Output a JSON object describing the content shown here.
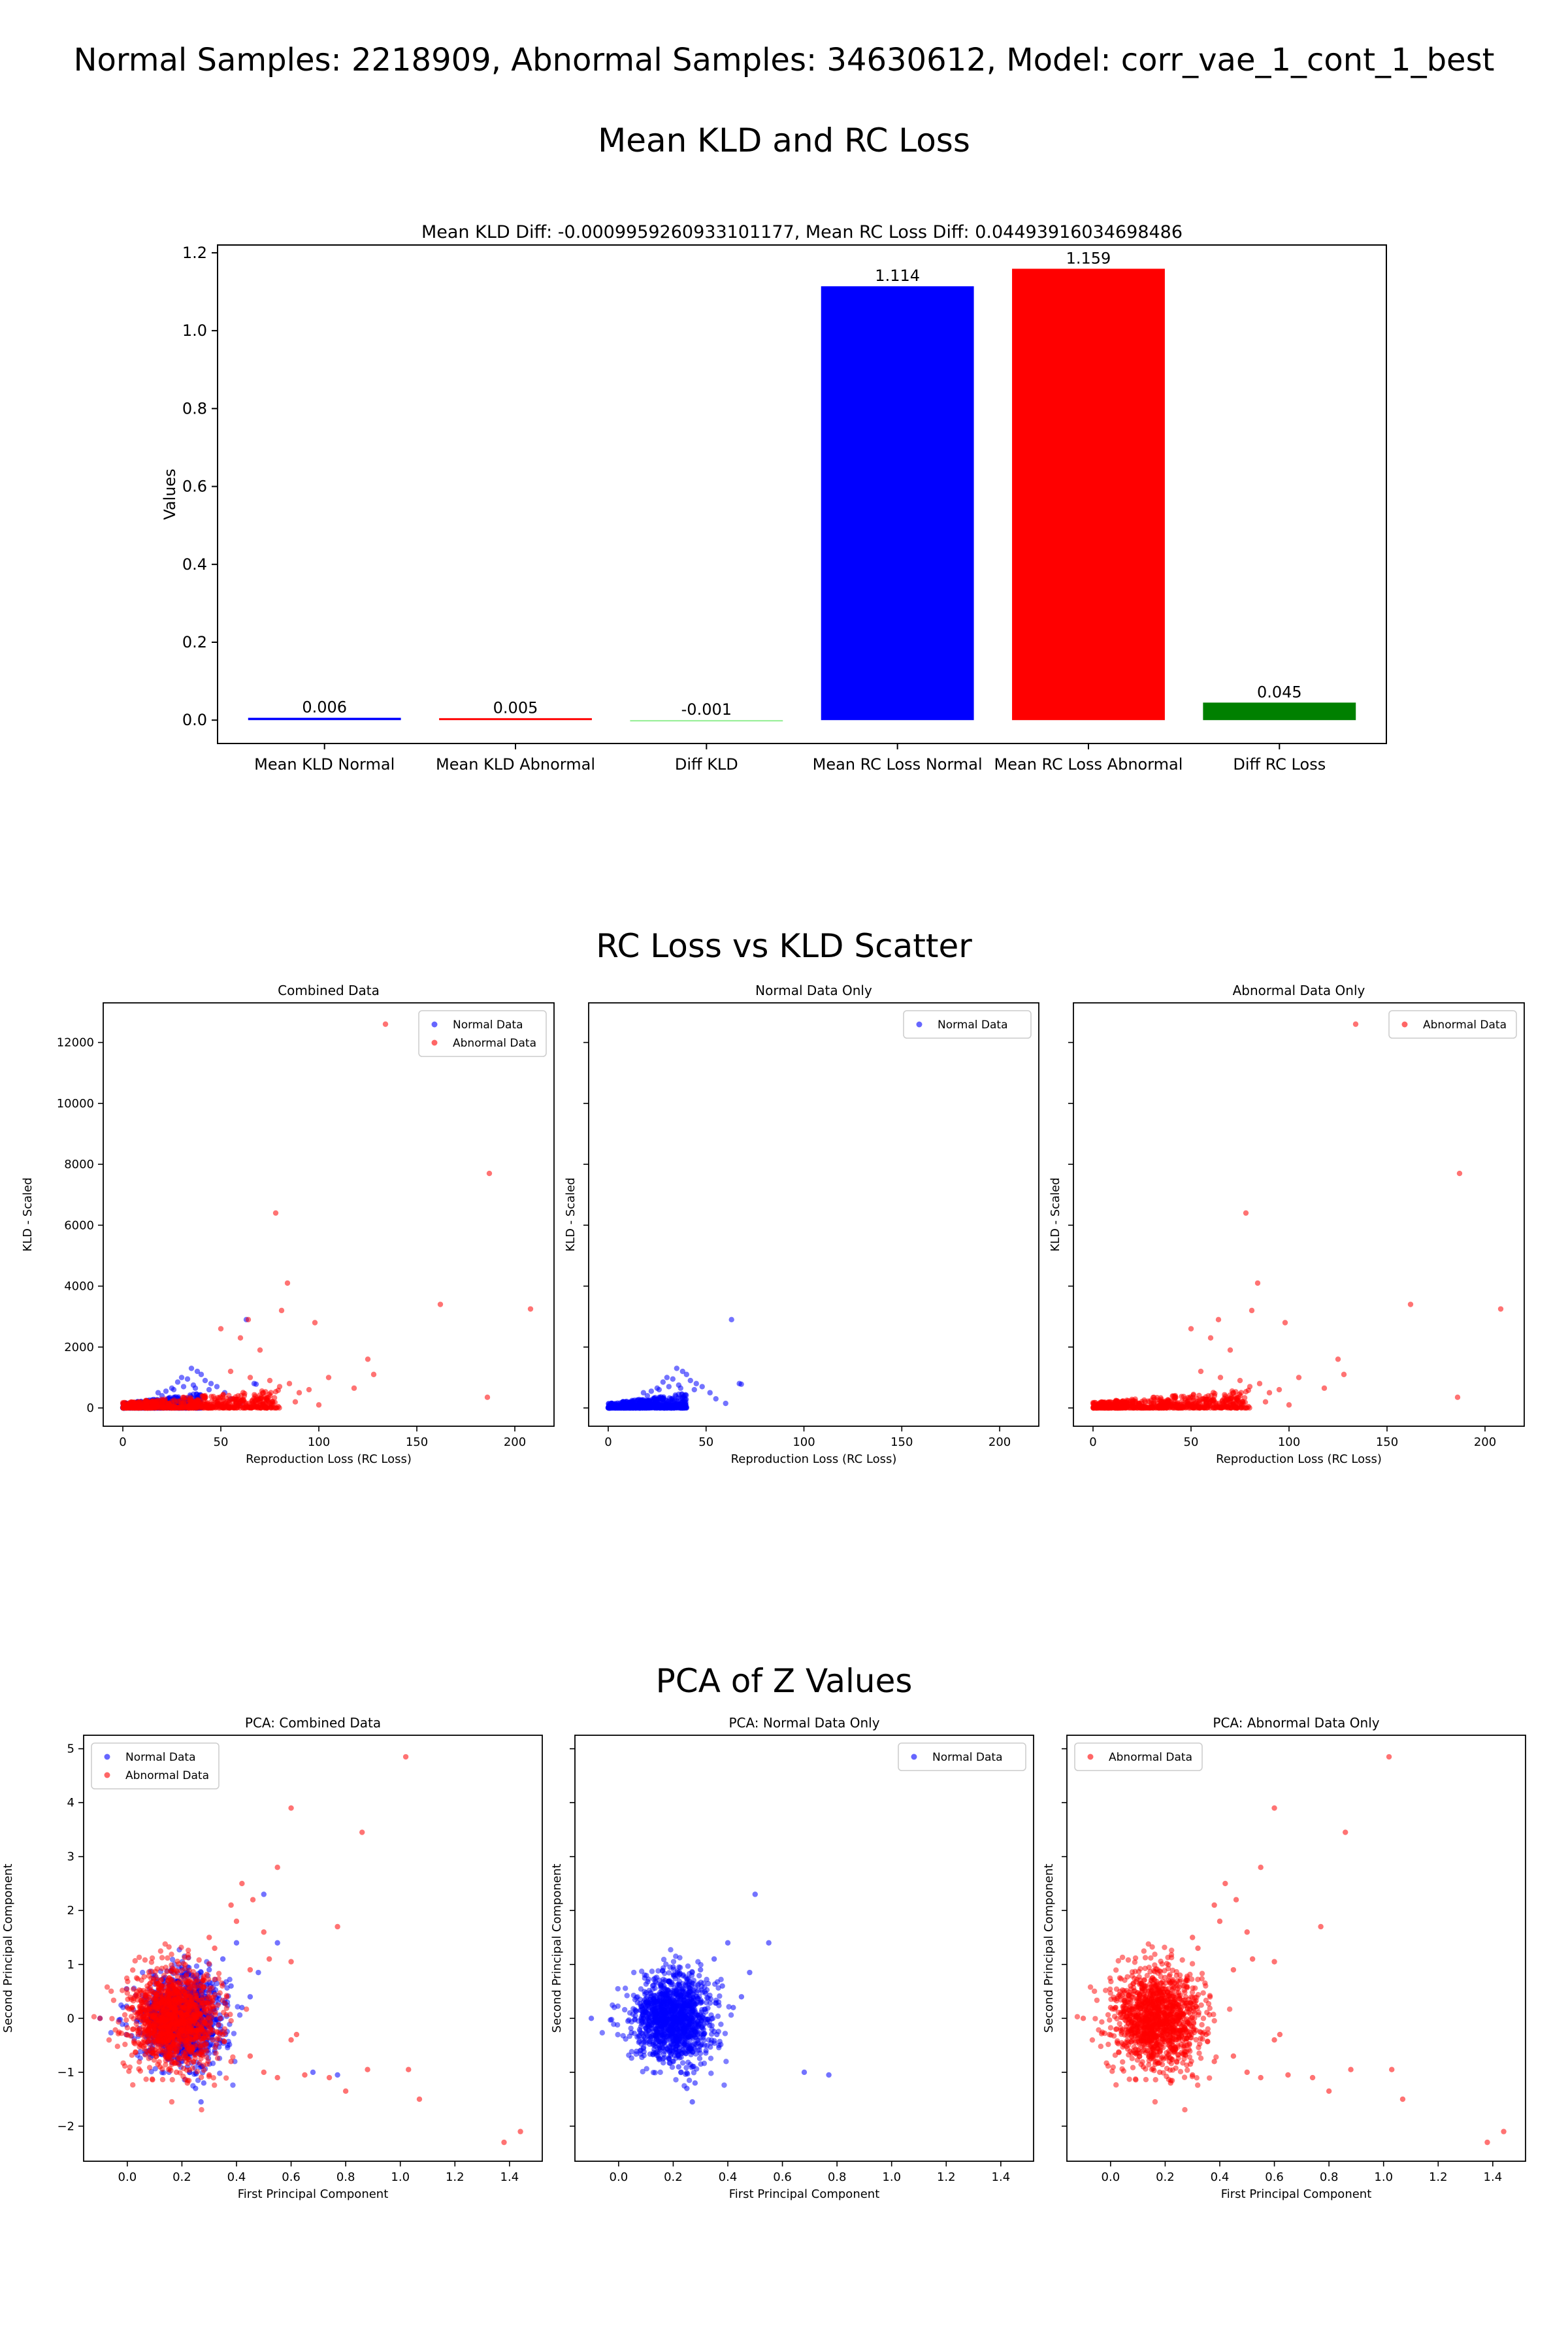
{
  "figure": {
    "suptitle": "Normal Samples: 2218909, Abnormal Samples: 34630612, Model: corr_vae_1_cont_1_best",
    "section_titles": [
      "Mean KLD and RC Loss",
      "RC Loss vs KLD Scatter",
      "PCA of Z Values"
    ]
  },
  "colors": {
    "normal": "#0000ff",
    "abnormal": "#ff0000",
    "diff_kld": "#90ee90",
    "diff_rc": "#008000"
  },
  "chart_data": [
    {
      "type": "bar",
      "title": "Mean KLD Diff: -0.0009959260933101177, Mean RC Loss Diff: 0.04493916034698486",
      "ylabel": "Values",
      "categories": [
        "Mean KLD Normal",
        "Mean KLD Abnormal",
        "Diff KLD",
        "Mean RC Loss Normal",
        "Mean RC Loss Abnormal",
        "Diff RC Loss"
      ],
      "values": [
        0.006,
        0.005,
        -0.001,
        1.114,
        1.159,
        0.045
      ],
      "value_labels": [
        "0.006",
        "0.005",
        "-0.001",
        "1.114",
        "1.159",
        "0.045"
      ],
      "bar_colors": [
        "#0000ff",
        "#ff0000",
        "#90ee90",
        "#0000ff",
        "#ff0000",
        "#008000"
      ],
      "ylim": [
        -0.06,
        1.22
      ],
      "yticks": [
        0.0,
        0.2,
        0.4,
        0.6,
        0.8,
        1.0,
        1.2
      ],
      "ytick_labels": [
        "0.0",
        "0.2",
        "0.4",
        "0.6",
        "0.8",
        "1.0",
        "1.2"
      ],
      "grid": false
    },
    {
      "type": "scatter",
      "group": "rc_vs_kld",
      "xlabel": "Reproduction Loss (RC Loss)",
      "ylabel": "KLD - Scaled",
      "xlim": [
        -10,
        220
      ],
      "ylim": [
        -600,
        13300
      ],
      "xticks": [
        0,
        50,
        100,
        150,
        200
      ],
      "xtick_labels": [
        "0",
        "50",
        "100",
        "150",
        "200"
      ],
      "yticks": [
        0,
        2000,
        4000,
        6000,
        8000,
        10000,
        12000
      ],
      "ytick_labels": [
        "0",
        "2000",
        "4000",
        "6000",
        "8000",
        "10000",
        "12000"
      ],
      "legend_placement": "upper right",
      "panels": [
        {
          "title": "Combined Data",
          "show_y_ticklabels": true,
          "series": [
            "normal",
            "abnormal"
          ]
        },
        {
          "title": "Normal Data Only",
          "show_y_ticklabels": false,
          "series": [
            "normal"
          ]
        },
        {
          "title": "Abnormal Data Only",
          "show_y_ticklabels": false,
          "series": [
            "abnormal"
          ]
        }
      ],
      "series": {
        "normal": {
          "name": "Normal Data",
          "points": [
            [
              30,
              1000
            ],
            [
              35,
              1300
            ],
            [
              38,
              1200
            ],
            [
              40,
              1100
            ],
            [
              42,
              900
            ],
            [
              45,
              800
            ],
            [
              48,
              700
            ],
            [
              33,
              950
            ],
            [
              28,
              850
            ],
            [
              25,
              650
            ],
            [
              36,
              750
            ],
            [
              44,
              600
            ],
            [
              52,
              500
            ],
            [
              55,
              300
            ],
            [
              60,
              150
            ],
            [
              63,
              2900
            ],
            [
              67,
              800
            ],
            [
              68,
              780
            ],
            [
              20,
              400
            ],
            [
              15,
              250
            ],
            [
              12,
              200
            ],
            [
              10,
              150
            ],
            [
              8,
              120
            ],
            [
              5,
              80
            ],
            [
              3,
              40
            ],
            [
              18,
              500
            ],
            [
              22,
              550
            ],
            [
              26,
              600
            ],
            [
              31,
              700
            ],
            [
              37,
              650
            ]
          ]
        },
        "abnormal": {
          "name": "Abnormal Data",
          "points": [
            [
              134,
              12600
            ],
            [
              187,
              7700
            ],
            [
              78,
              6400
            ],
            [
              84,
              4100
            ],
            [
              162,
              3400
            ],
            [
              208,
              3250
            ],
            [
              81,
              3200
            ],
            [
              98,
              2800
            ],
            [
              64,
              2900
            ],
            [
              50,
              2600
            ],
            [
              60,
              2300
            ],
            [
              125,
              1600
            ],
            [
              128,
              1100
            ],
            [
              118,
              650
            ],
            [
              186,
              350
            ],
            [
              100,
              100
            ],
            [
              70,
              1900
            ],
            [
              55,
              1200
            ],
            [
              65,
              1000
            ],
            [
              75,
              900
            ],
            [
              85,
              800
            ],
            [
              90,
              500
            ],
            [
              95,
              600
            ],
            [
              105,
              1000
            ],
            [
              80,
              700
            ],
            [
              62,
              400
            ],
            [
              70,
              300
            ],
            [
              88,
              200
            ],
            [
              42,
              400
            ],
            [
              47,
              300
            ],
            [
              35,
              200
            ],
            [
              30,
              150
            ],
            [
              20,
              100
            ],
            [
              15,
              80
            ],
            [
              10,
              50
            ]
          ]
        }
      },
      "dense": {
        "normal": {
          "x_range": [
            0,
            40
          ],
          "max_y": 350
        },
        "abnormal": {
          "x_range": [
            0,
            80
          ],
          "max_y": 450
        }
      }
    },
    {
      "type": "scatter",
      "group": "pca",
      "xlabel": "First Principal Component",
      "ylabel": "Second Principal Component",
      "xlim": [
        -0.16,
        1.52
      ],
      "ylim": [
        -2.65,
        5.25
      ],
      "xticks": [
        0.0,
        0.2,
        0.4,
        0.6,
        0.8,
        1.0,
        1.2,
        1.4
      ],
      "xtick_labels": [
        "0.0",
        "0.2",
        "0.4",
        "0.6",
        "0.8",
        "1.0",
        "1.2",
        "1.4"
      ],
      "yticks": [
        -2,
        -1,
        0,
        1,
        2,
        3,
        4,
        5
      ],
      "ytick_labels": [
        "−2",
        "−1",
        "0",
        "1",
        "2",
        "3",
        "4",
        "5"
      ],
      "panels": [
        {
          "title": "PCA: Combined Data",
          "show_y_ticklabels": true,
          "series": [
            "normal",
            "abnormal"
          ],
          "legend_placement": "upper left"
        },
        {
          "title": "PCA: Normal Data Only",
          "show_y_ticklabels": false,
          "series": [
            "normal"
          ],
          "legend_placement": "upper right"
        },
        {
          "title": "PCA: Abnormal Data Only",
          "show_y_ticklabels": false,
          "series": [
            "abnormal"
          ],
          "legend_placement": "upper left"
        }
      ],
      "series": {
        "normal": {
          "name": "Normal Data",
          "points": [
            [
              -0.1,
              0
            ],
            [
              -0.03,
              -0.03
            ],
            [
              0.5,
              2.3
            ],
            [
              0.55,
              1.4
            ],
            [
              0.4,
              1.4
            ],
            [
              0.35,
              1.1
            ],
            [
              0.38,
              0.6
            ],
            [
              0.3,
              0.9
            ],
            [
              0.32,
              -0.6
            ],
            [
              0.28,
              -1.2
            ],
            [
              0.27,
              -1.55
            ],
            [
              0.25,
              -1.3
            ],
            [
              0.22,
              -0.9
            ],
            [
              0.2,
              0.95
            ],
            [
              0.68,
              -1.0
            ],
            [
              0.77,
              -1.05
            ],
            [
              0.48,
              0.85
            ],
            [
              0.45,
              0.4
            ],
            [
              0.42,
              0.2
            ],
            [
              0.36,
              -0.3
            ]
          ]
        },
        "abnormal": {
          "name": "Abnormal Data",
          "points": [
            [
              -0.1,
              0
            ],
            [
              1.02,
              4.85
            ],
            [
              0.6,
              3.9
            ],
            [
              0.86,
              3.45
            ],
            [
              0.55,
              2.8
            ],
            [
              0.42,
              2.5
            ],
            [
              0.46,
              2.2
            ],
            [
              0.38,
              2.1
            ],
            [
              0.4,
              1.8
            ],
            [
              0.5,
              1.6
            ],
            [
              0.77,
              1.7
            ],
            [
              0.52,
              1.1
            ],
            [
              0.6,
              1.05
            ],
            [
              0.32,
              1.3
            ],
            [
              0.3,
              1.5
            ],
            [
              0.45,
              0.9
            ],
            [
              0.6,
              -0.4
            ],
            [
              0.62,
              -0.3
            ],
            [
              0.65,
              -1.05
            ],
            [
              0.74,
              -1.1
            ],
            [
              0.8,
              -1.35
            ],
            [
              0.88,
              -0.95
            ],
            [
              1.03,
              -0.95
            ],
            [
              1.07,
              -1.5
            ],
            [
              1.38,
              -2.3
            ],
            [
              1.44,
              -2.1
            ],
            [
              0.55,
              -1.1
            ],
            [
              0.5,
              -1.0
            ],
            [
              0.45,
              -0.7
            ],
            [
              0.38,
              -0.8
            ],
            [
              0.3,
              -1.05
            ],
            [
              0.22,
              -1.2
            ],
            [
              0.28,
              -0.5
            ],
            [
              0.35,
              -0.3
            ],
            [
              0.18,
              -1.0
            ],
            [
              0.12,
              -0.9
            ],
            [
              0.05,
              -0.5
            ],
            [
              0.0,
              0.2
            ]
          ]
        }
      },
      "dense": {
        "normal": {
          "cx": 0.2,
          "cy": 0.0,
          "sx": 0.07,
          "sy": 0.4
        },
        "abnormal": {
          "cx": 0.17,
          "cy": 0.0,
          "sx": 0.08,
          "sy": 0.45
        }
      }
    }
  ]
}
